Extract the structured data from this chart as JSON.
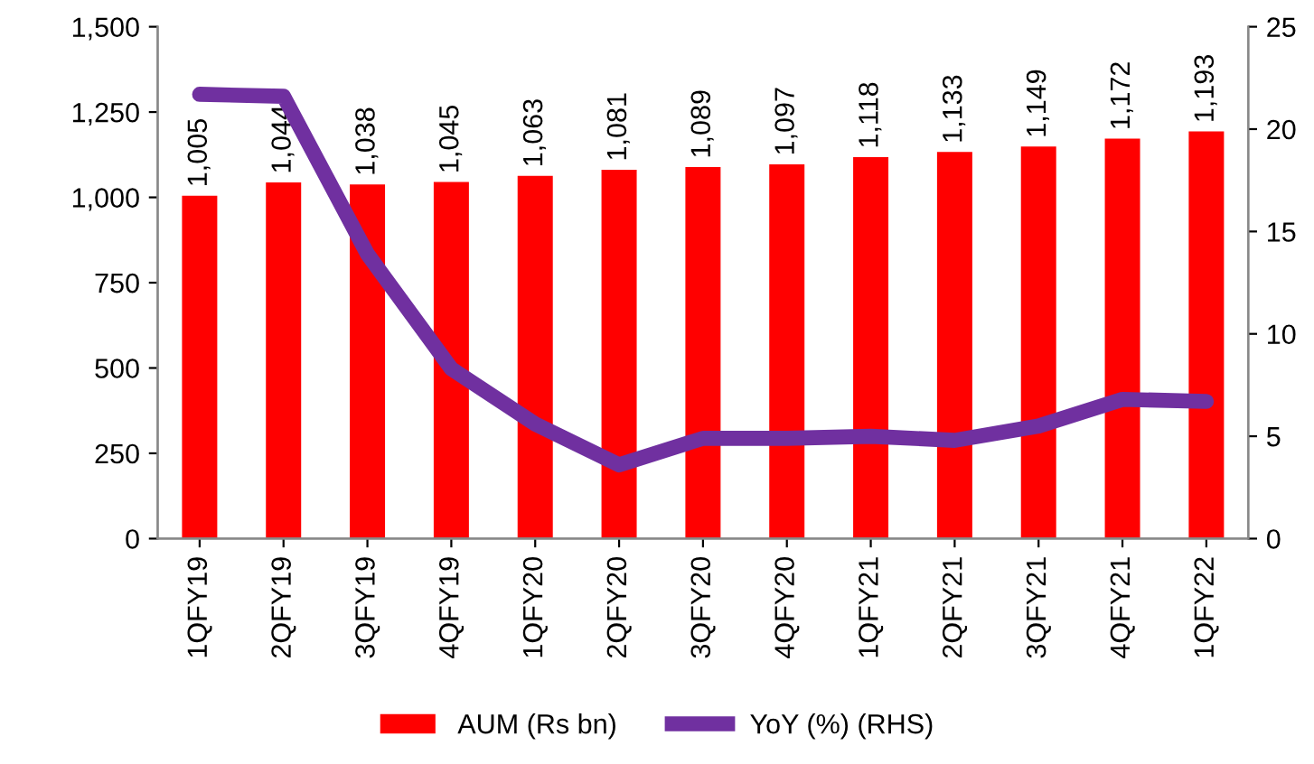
{
  "chart_data": {
    "type": "bar",
    "categories": [
      "1QFY19",
      "2QFY19",
      "3QFY19",
      "4QFY19",
      "1QFY20",
      "2QFY20",
      "3QFY20",
      "4QFY20",
      "1QFY21",
      "2QFY21",
      "3QFY21",
      "4QFY21",
      "1QFY22"
    ],
    "series": [
      {
        "name": "AUM (Rs bn)",
        "color": "#ff0000",
        "values": [
          1005,
          1044,
          1038,
          1045,
          1063,
          1081,
          1089,
          1097,
          1118,
          1133,
          1149,
          1172,
          1193
        ],
        "value_labels": [
          "1,005",
          "1,044",
          "1,038",
          "1,045",
          "1,063",
          "1,081",
          "1,089",
          "1,097",
          "1,118",
          "1,133",
          "1,149",
          "1,172",
          "1,193"
        ]
      },
      {
        "name": "YoY (%) (RHS)",
        "type": "line",
        "axis": "y2",
        "color": "#7030a0",
        "values": [
          21.7,
          21.6,
          13.9,
          8.3,
          5.6,
          3.6,
          4.9,
          4.9,
          5.0,
          4.8,
          5.5,
          6.8,
          6.7
        ]
      }
    ],
    "ylim": [
      0,
      1500
    ],
    "yticks": [
      0,
      250,
      500,
      750,
      {
        "value": 1000,
        "label": "1,000"
      },
      {
        "value": 1250,
        "label": "1,250"
      },
      {
        "value": 1500,
        "label": "1,500"
      }
    ],
    "y2lim": [
      0,
      25
    ],
    "y2ticks": [
      0,
      5,
      10,
      15,
      20,
      25
    ],
    "legend": "bottom",
    "grid": false,
    "marker": "none",
    "line_style": "solid"
  }
}
